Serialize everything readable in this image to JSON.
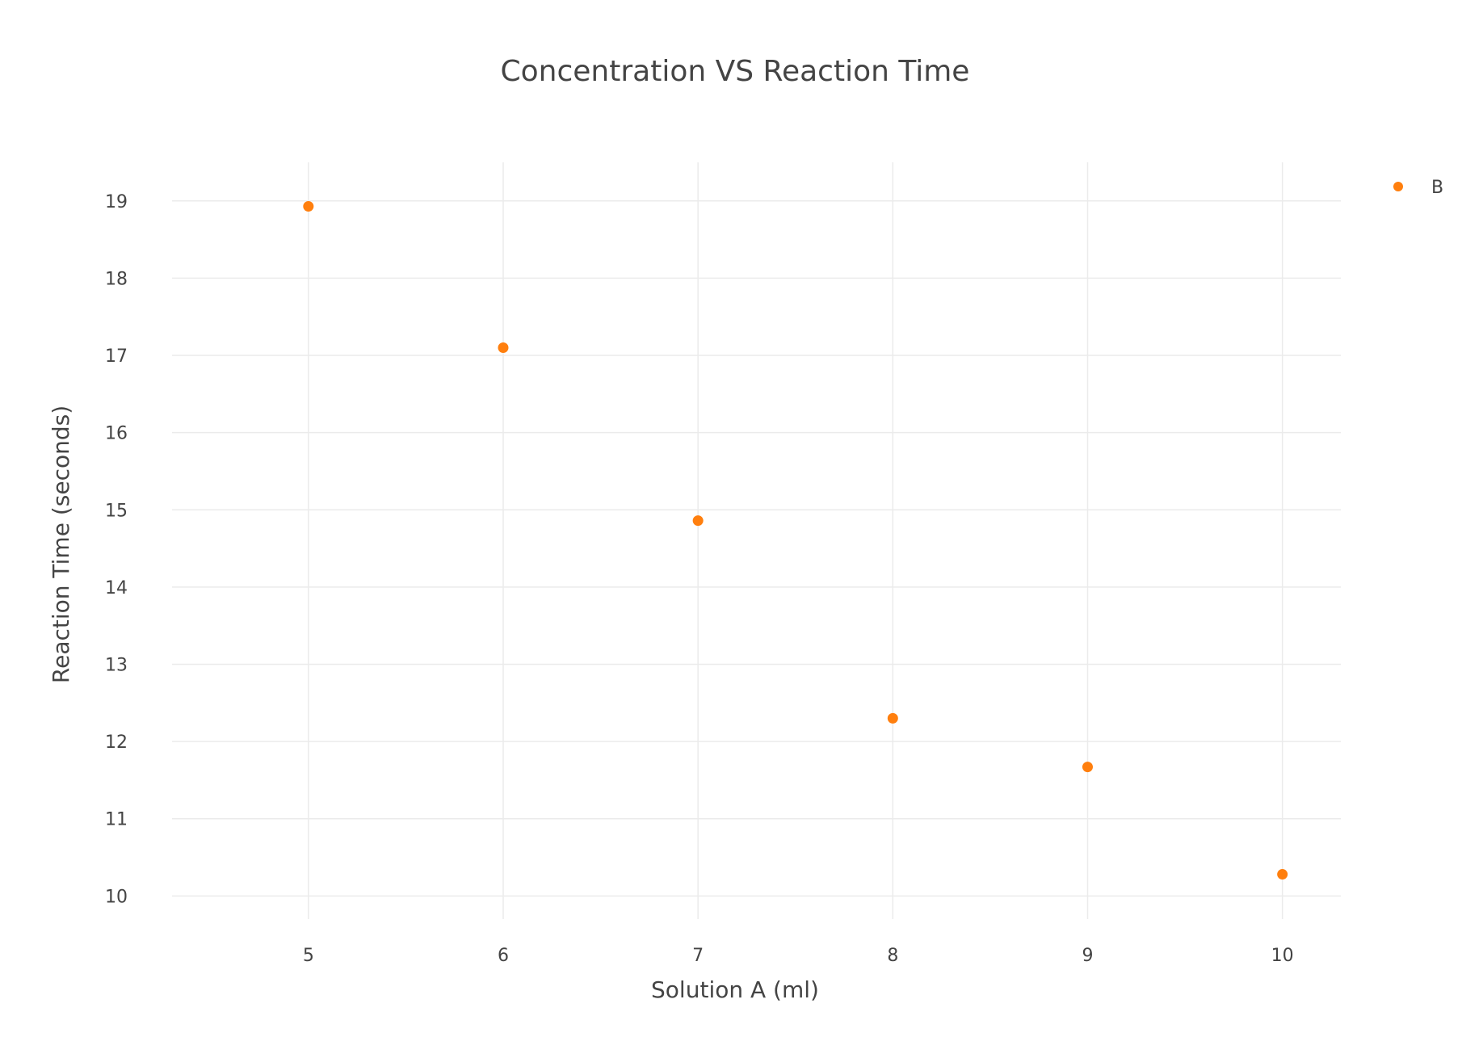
{
  "chart_data": {
    "type": "scatter",
    "title": "Concentration VS Reaction Time",
    "xlabel": "Solution A (ml)",
    "ylabel": "Reaction Time (seconds)",
    "xlim": [
      4.3,
      10.3
    ],
    "ylim": [
      9.7,
      19.5
    ],
    "x_ticks": [
      5,
      6,
      7,
      8,
      9,
      10
    ],
    "y_ticks": [
      10,
      11,
      12,
      13,
      14,
      15,
      16,
      17,
      18,
      19
    ],
    "grid": true,
    "legend": {
      "show": true,
      "position": "top-right"
    },
    "series": [
      {
        "name": "B",
        "color": "#ff7f0e",
        "x": [
          5,
          6,
          7,
          8,
          9,
          10
        ],
        "y": [
          18.93,
          17.1,
          14.86,
          12.3,
          11.67,
          10.28
        ]
      }
    ]
  }
}
